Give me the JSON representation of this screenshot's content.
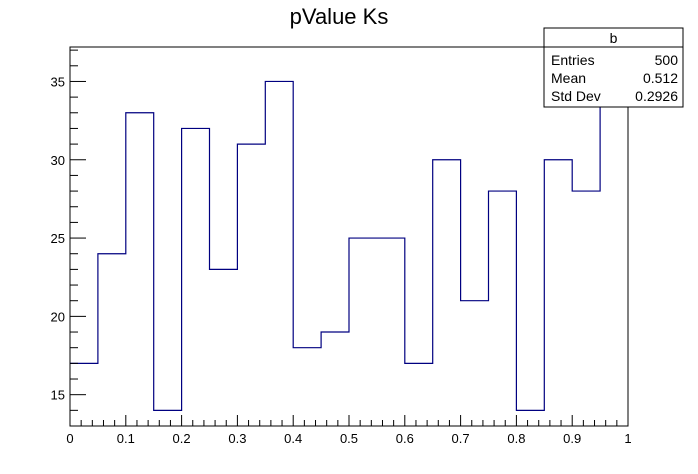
{
  "chart_data": {
    "type": "bar",
    "style": "step-histogram",
    "title": "pValue Ks",
    "xlabel": "",
    "ylabel": "",
    "xlim": [
      0,
      1
    ],
    "ylim": [
      13,
      37.2
    ],
    "bin_edges": [
      0,
      0.05,
      0.1,
      0.15,
      0.2,
      0.25,
      0.3,
      0.35,
      0.4,
      0.45,
      0.5,
      0.55,
      0.6,
      0.65,
      0.7,
      0.75,
      0.8,
      0.85,
      0.9,
      0.95,
      1.0
    ],
    "values": [
      17,
      24,
      33,
      14,
      32,
      23,
      31,
      35,
      18,
      19,
      25,
      25,
      17,
      30,
      21,
      28,
      14,
      30,
      28,
      36
    ],
    "x_ticks": [
      0,
      0.1,
      0.2,
      0.3,
      0.4,
      0.5,
      0.6,
      0.7,
      0.8,
      0.9,
      1
    ],
    "x_tick_labels": [
      "0",
      "0.1",
      "0.2",
      "0.3",
      "0.4",
      "0.5",
      "0.6",
      "0.7",
      "0.8",
      "0.9",
      "1"
    ],
    "y_ticks": [
      15,
      20,
      25,
      30,
      35
    ],
    "y_tick_labels": [
      "15",
      "20",
      "25",
      "30",
      "35"
    ],
    "grid": false,
    "line_color": "#000080",
    "stats_box": {
      "placement": "top-right",
      "name": "b",
      "rows": [
        {
          "label": "Entries",
          "value": "500"
        },
        {
          "label": "Mean",
          "value": "0.512"
        },
        {
          "label": "Std Dev",
          "value": "0.2926"
        }
      ]
    }
  }
}
